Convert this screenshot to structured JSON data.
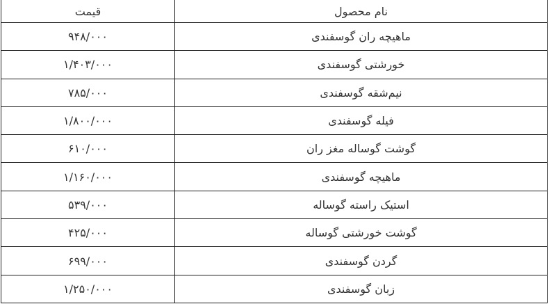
{
  "colors": {
    "background": "#ffffff",
    "border": "#1c1c1c",
    "text": "#333333"
  },
  "chart_data": {
    "type": "table",
    "direction": "rtl",
    "columns": [
      {
        "key": "name",
        "label": "نام محصول"
      },
      {
        "key": "price",
        "label": "قیمت"
      }
    ],
    "rows": [
      {
        "name": "ماهیچه ران گوسفندی",
        "price": "۹۴۸/۰۰۰",
        "price_value": 948000
      },
      {
        "name": "خورشتی گوسفندی",
        "price": "۱/۴۰۳/۰۰۰",
        "price_value": 1403000
      },
      {
        "name": "نیم‌شقه گوسفندی",
        "price": "۷۸۵/۰۰۰",
        "price_value": 785000
      },
      {
        "name": "فیله گوسفندی",
        "price": "۱/۸۰۰/۰۰۰",
        "price_value": 1800000
      },
      {
        "name": "گوشت گوساله مغز ران",
        "price": "۶۱۰/۰۰۰",
        "price_value": 610000
      },
      {
        "name": "ماهیچه گوسفندی",
        "price": "۱/۱۶۰/۰۰۰",
        "price_value": 1160000
      },
      {
        "name": "استیک راسته گوساله",
        "price": "۵۳۹/۰۰۰",
        "price_value": 539000
      },
      {
        "name": "گوشت خورشتی گوساله",
        "price": "۴۲۵/۰۰۰",
        "price_value": 425000
      },
      {
        "name": "گردن گوسفندی",
        "price": "۶۹۹/۰۰۰",
        "price_value": 699000
      },
      {
        "name": "زبان گوسفندی",
        "price": "۱/۲۵۰/۰۰۰",
        "price_value": 1250000
      }
    ]
  }
}
